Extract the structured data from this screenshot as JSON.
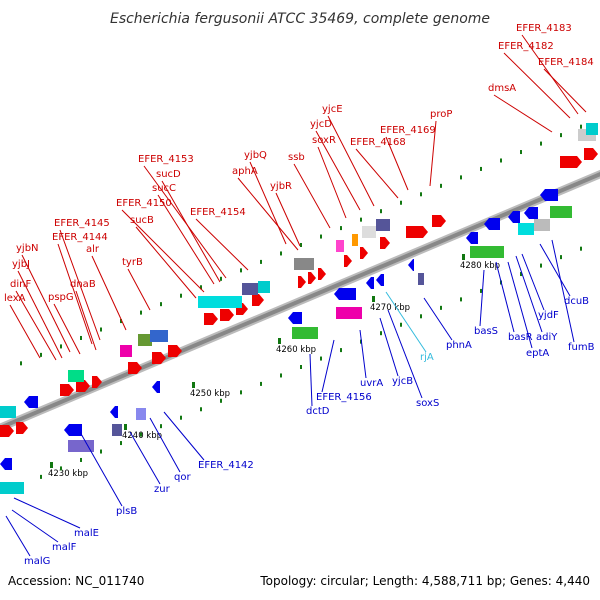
{
  "title": "Escherichia fergusonii ATCC 35469, complete genome",
  "footer": {
    "accession": "Accession: NC_011740",
    "summary": "Topology: circular; Length: 4,588,711 bp; Genes: 4,440"
  },
  "colors": {
    "forward_label": "#cc0000",
    "reverse_label": "#0000cc",
    "rna_label": "#33bbdd",
    "backbone": "#999999",
    "tick": "#117711"
  },
  "ticks": [
    "4230 kbp",
    "4240 kbp",
    "4250 kbp",
    "4260 kbp",
    "4270 kbp",
    "4280 kbp"
  ],
  "forward_genes": [
    "lexA",
    "dinF",
    "yjbJ",
    "yjbN",
    "pspG",
    "EFER_4144",
    "EFER_4145",
    "dnaB",
    "alr",
    "tyrB",
    "sucB",
    "EFER_4150",
    "sucC",
    "sucD",
    "EFER_4153",
    "EFER_4154",
    "aphA",
    "yjbQ",
    "yjbR",
    "ssb",
    "soxR",
    "yjcD",
    "yjcE",
    "EFER_4168",
    "EFER_4169",
    "proP",
    "dmsA",
    "EFER_4182",
    "EFER_4183",
    "EFER_4184"
  ],
  "reverse_genes": [
    "malG",
    "malF",
    "malE",
    "plsB",
    "zur",
    "qor",
    "EFER_4142",
    "dctD",
    "EFER_4156",
    "uvrA",
    "yjcB",
    "soxS",
    "rjA",
    "phnA",
    "basS",
    "basR",
    "eptA",
    "adiY",
    "yjdF",
    "dcuB",
    "fumB"
  ]
}
